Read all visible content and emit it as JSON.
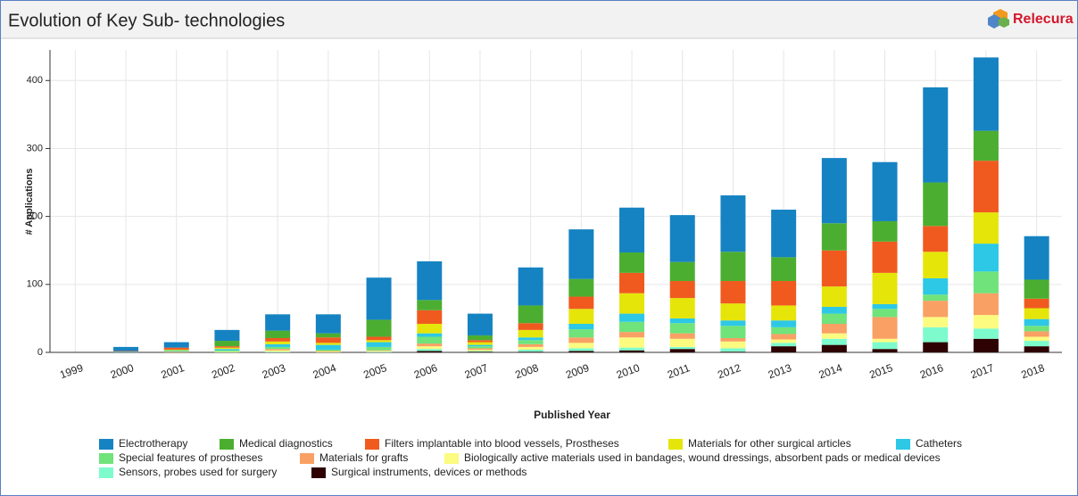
{
  "brand": "Relecura",
  "chart_data": {
    "type": "stacked_bar",
    "title": "Evolution of Key Sub- technologies",
    "x_label": "Published Year",
    "y_label": "# Applications",
    "categories": [
      "1999",
      "2000",
      "2001",
      "2002",
      "2003",
      "2004",
      "2005",
      "2006",
      "2007",
      "2008",
      "2009",
      "2010",
      "2011",
      "2012",
      "2013",
      "2014",
      "2015",
      "2016",
      "2017",
      "2018"
    ],
    "ylim": [
      0,
      445
    ],
    "yticks": [
      0,
      100,
      200,
      300,
      400
    ],
    "grid": true,
    "legend": "bottom",
    "series": [
      {
        "name": "Electrotherapy",
        "color": "#1583c2",
        "values": [
          0,
          6,
          8,
          16,
          24,
          28,
          62,
          57,
          32,
          56,
          73,
          66,
          69,
          83,
          70,
          96,
          87,
          140,
          108,
          64
        ]
      },
      {
        "name": "Medical diagnostics",
        "color": "#4cae30",
        "values": [
          0,
          0,
          0,
          8,
          11,
          6,
          25,
          15,
          7,
          26,
          26,
          30,
          28,
          43,
          35,
          40,
          30,
          64,
          44,
          28
        ]
      },
      {
        "name": "Filters implantable into blood vessels, Prostheses",
        "color": "#f05a1f",
        "values": [
          0,
          1,
          3,
          2,
          5,
          8,
          5,
          20,
          3,
          10,
          18,
          30,
          25,
          33,
          36,
          53,
          46,
          38,
          76,
          14
        ]
      },
      {
        "name": "Materials for other surgical articles",
        "color": "#e5e50a",
        "values": [
          0,
          0,
          1,
          2,
          4,
          3,
          3,
          14,
          4,
          11,
          22,
          30,
          30,
          25,
          22,
          30,
          46,
          39,
          46,
          16
        ]
      },
      {
        "name": "Catheters",
        "color": "#2cc8e6",
        "values": [
          0,
          1,
          1,
          2,
          4,
          7,
          7,
          5,
          2,
          4,
          8,
          12,
          7,
          8,
          10,
          10,
          7,
          24,
          41,
          10
        ]
      },
      {
        "name": "Special features of prostheses",
        "color": "#70e37a",
        "values": [
          0,
          0,
          1,
          2,
          3,
          2,
          5,
          10,
          3,
          6,
          12,
          15,
          15,
          18,
          10,
          15,
          12,
          9,
          32,
          8
        ]
      },
      {
        "name": "Materials for grafts",
        "color": "#f9a064",
        "values": [
          0,
          0,
          1,
          0,
          2,
          1,
          1,
          4,
          2,
          4,
          8,
          8,
          8,
          5,
          8,
          14,
          32,
          24,
          32,
          8
        ]
      },
      {
        "name": "Biologically active materials used in bandages, wound dressings, absorbent pads or medical devices",
        "color": "#fbfb80",
        "values": [
          0,
          0,
          0,
          1,
          2,
          1,
          1,
          4,
          2,
          4,
          8,
          15,
          12,
          10,
          5,
          8,
          5,
          15,
          20,
          6
        ]
      },
      {
        "name": "Sensors, probes used for surgery",
        "color": "#7dfbcd",
        "values": [
          0,
          0,
          0,
          0,
          1,
          0,
          1,
          3,
          1,
          3,
          4,
          4,
          3,
          5,
          5,
          9,
          10,
          22,
          15,
          8
        ]
      },
      {
        "name": "Surgical instruments, devices or methods",
        "color": "#2e0202",
        "values": [
          0,
          0,
          0,
          0,
          0,
          0,
          0,
          2,
          1,
          1,
          2,
          3,
          5,
          1,
          9,
          11,
          5,
          15,
          20,
          9
        ]
      }
    ]
  }
}
